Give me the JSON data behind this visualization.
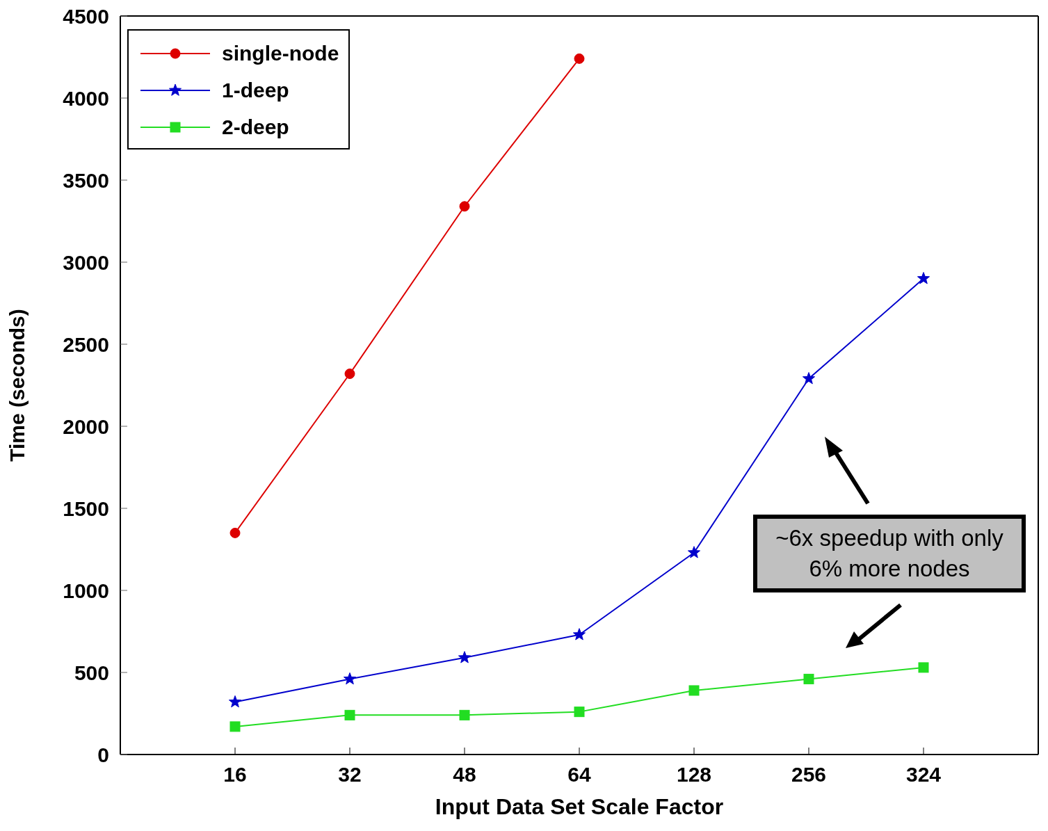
{
  "chart_data": {
    "type": "line",
    "xlabel": "Input Data Set Scale Factor",
    "ylabel": "Time (seconds)",
    "categories": [
      "16",
      "32",
      "48",
      "64",
      "128",
      "256",
      "324"
    ],
    "series": [
      {
        "name": "single-node",
        "color": "#dd0000",
        "marker": "circle",
        "values": [
          1350,
          2320,
          3340,
          4240,
          null,
          null,
          null
        ]
      },
      {
        "name": "1-deep",
        "color": "#0000cc",
        "marker": "star",
        "values": [
          320,
          460,
          590,
          730,
          1230,
          2290,
          2900
        ]
      },
      {
        "name": "2-deep",
        "color": "#22dd22",
        "marker": "square",
        "values": [
          170,
          240,
          240,
          260,
          390,
          460,
          530
        ]
      }
    ],
    "ylim": [
      0,
      4500
    ],
    "yticks": [
      0,
      500,
      1000,
      1500,
      2000,
      2500,
      3000,
      3500,
      4000,
      4500
    ],
    "grid": false,
    "legend": "top left",
    "line_style": "solid",
    "annotations": [
      "~6x speedup with only 6% more nodes"
    ]
  }
}
